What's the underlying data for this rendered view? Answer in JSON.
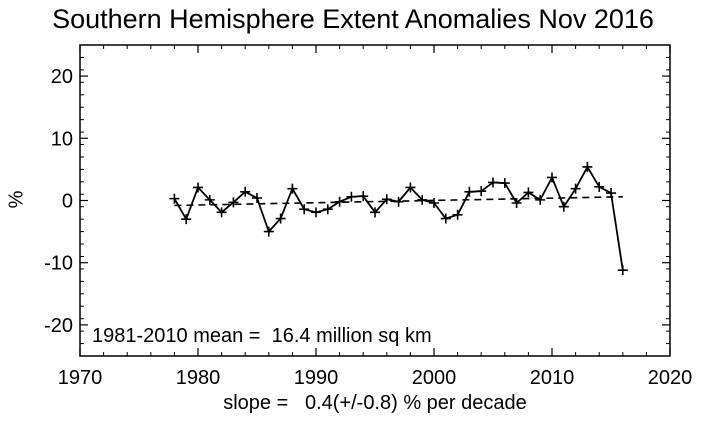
{
  "chart_data": {
    "type": "line",
    "title": "Southern Hemisphere Extent Anomalies Nov 2016",
    "xlabel": "slope =   0.4(+/-0.8) % per decade",
    "ylabel": "%",
    "annotation": "1981-2010 mean =  16.4 million sq km",
    "xlim": [
      1970,
      2020
    ],
    "ylim": [
      -25,
      25
    ],
    "xticks": [
      1970,
      1980,
      1990,
      2000,
      2010,
      2020
    ],
    "yticks": [
      -20,
      -10,
      0,
      10,
      20
    ],
    "grid": false,
    "series": [
      {
        "style": "solid-with-plus-markers",
        "x": [
          1978,
          1979,
          1980,
          1981,
          1982,
          1983,
          1984,
          1985,
          1986,
          1987,
          1988,
          1989,
          1990,
          1991,
          1992,
          1993,
          1994,
          1995,
          1996,
          1997,
          1998,
          1999,
          2000,
          2001,
          2002,
          2003,
          2004,
          2005,
          2006,
          2007,
          2008,
          2009,
          2010,
          2011,
          2012,
          2013,
          2014,
          2015,
          2016
        ],
        "y": [
          0.3,
          -3.0,
          2.1,
          0.1,
          -1.9,
          -0.3,
          1.4,
          0.4,
          -5.0,
          -2.9,
          1.9,
          -1.4,
          -1.9,
          -1.4,
          -0.2,
          0.6,
          0.7,
          -1.9,
          0.2,
          -0.2,
          2.1,
          0.1,
          -0.4,
          -2.9,
          -2.3,
          1.4,
          1.5,
          2.9,
          2.8,
          -0.4,
          1.3,
          0.1,
          3.7,
          -1.0,
          1.9,
          5.4,
          2.2,
          1.2,
          -11.2
        ]
      },
      {
        "style": "dashed-trend",
        "x": [
          1978,
          2016
        ],
        "y": [
          -0.8,
          0.6
        ]
      }
    ]
  }
}
